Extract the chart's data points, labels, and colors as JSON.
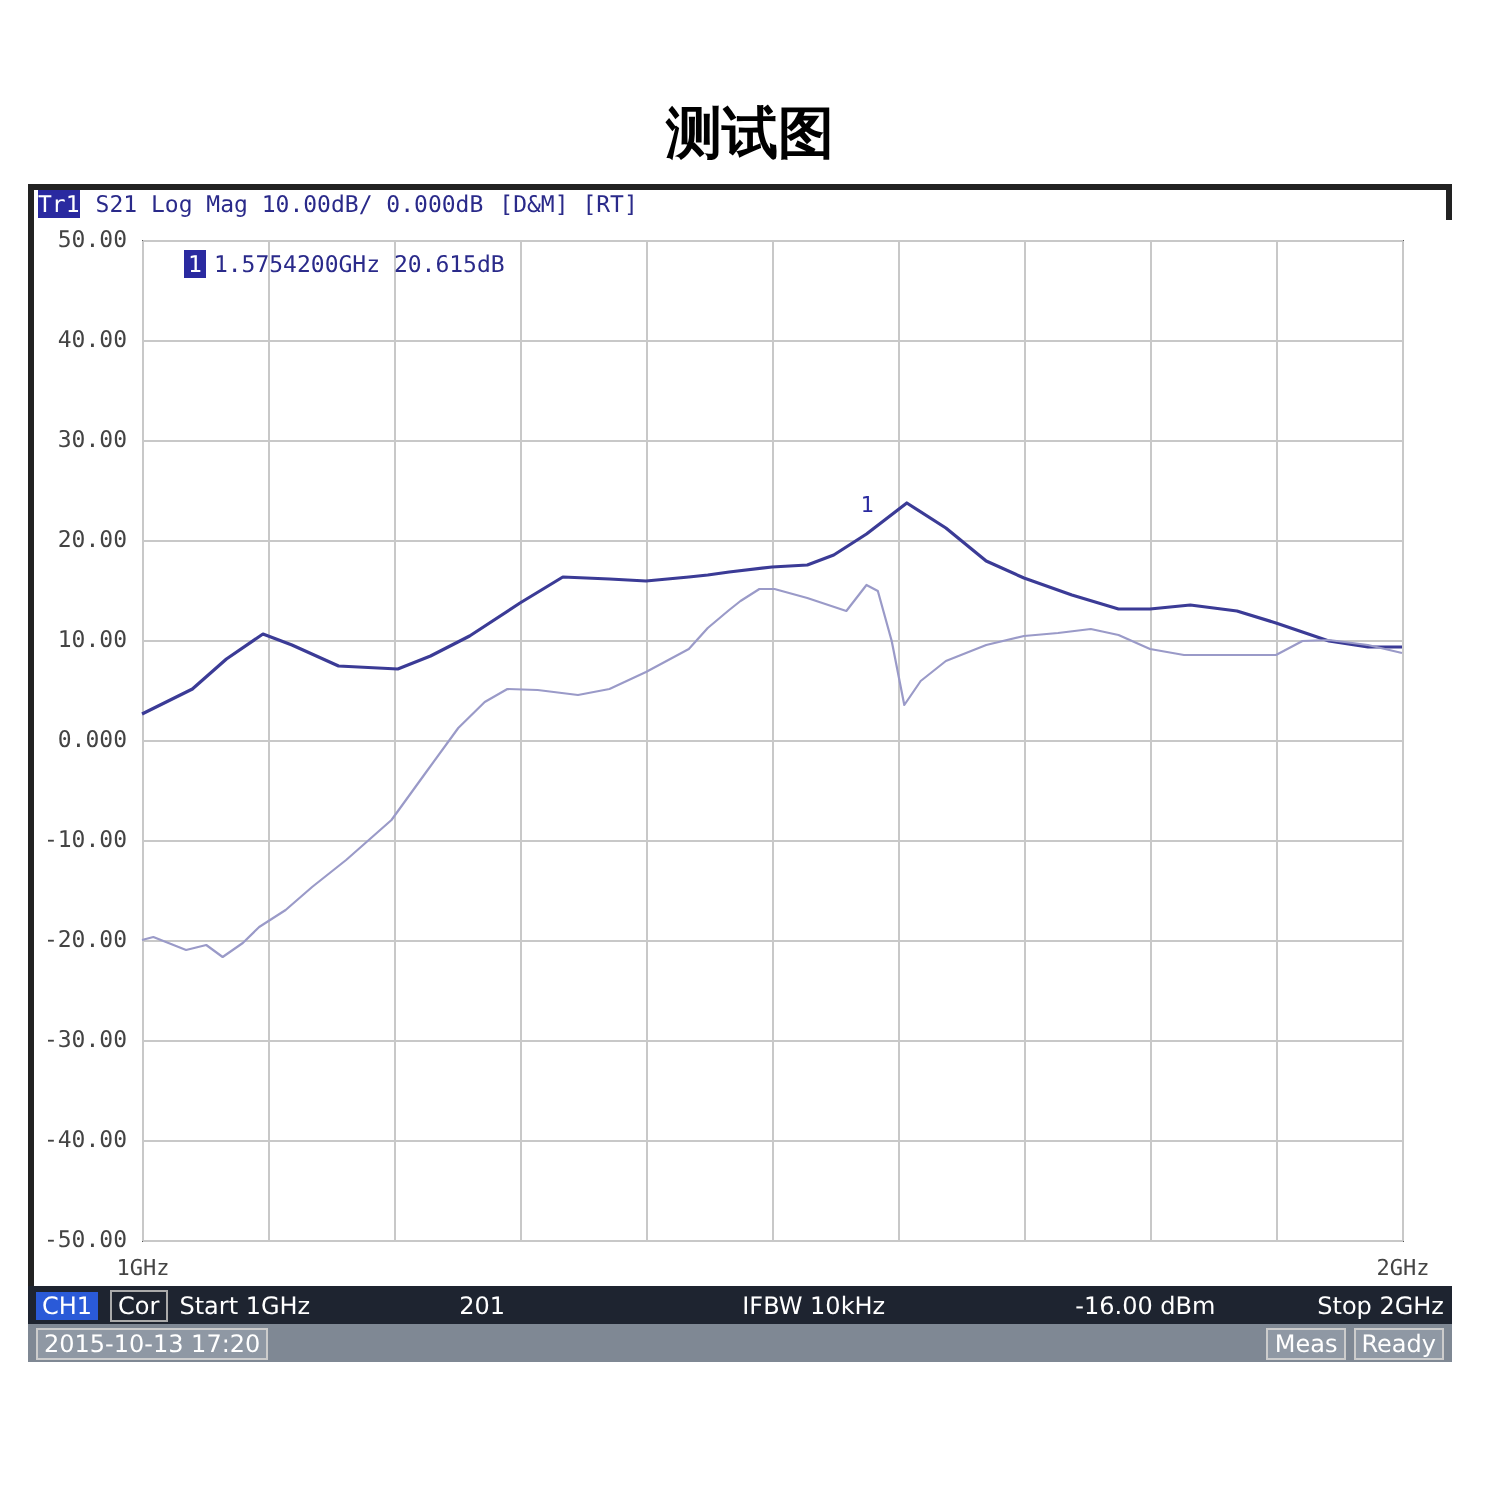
{
  "chart_data": {
    "type": "line",
    "title": "测试图",
    "x": [
      1.0,
      1.04,
      1.067,
      1.096,
      1.119,
      1.156,
      1.203,
      1.229,
      1.26,
      1.3,
      1.334,
      1.371,
      1.4,
      1.434,
      1.449,
      1.466,
      1.5,
      1.528,
      1.549,
      1.575,
      1.607,
      1.638,
      1.67,
      1.7,
      1.738,
      1.775,
      1.8,
      1.832,
      1.869,
      1.9,
      1.942,
      1.973,
      2.0
    ],
    "series": [
      {
        "color": "#3b3b96",
        "values": [
          2.6,
          5.1,
          8.1,
          10.6,
          9.5,
          7.4,
          7.1,
          8.4,
          10.4,
          13.7,
          16.3,
          16.1,
          15.9,
          16.3,
          16.5,
          16.8,
          17.3,
          17.5,
          18.5,
          20.6,
          23.7,
          21.2,
          17.9,
          16.2,
          14.5,
          13.1,
          13.1,
          13.5,
          12.9,
          11.7,
          9.9,
          9.3,
          9.3
        ]
      },
      {
        "color": "#9a9ac8",
        "x": [
          1.0,
          1.009,
          1.035,
          1.051,
          1.064,
          1.08,
          1.093,
          1.114,
          1.135,
          1.162,
          1.198,
          1.225,
          1.251,
          1.272,
          1.29,
          1.314,
          1.346,
          1.371,
          1.4,
          1.434,
          1.449,
          1.466,
          1.475,
          1.49,
          1.502,
          1.528,
          1.559,
          1.575,
          1.584,
          1.595,
          1.605,
          1.618,
          1.638,
          1.67,
          1.7,
          1.727,
          1.753,
          1.775,
          1.8,
          1.827,
          1.9,
          1.921,
          1.942,
          1.973,
          2.0
        ],
        "values": [
          -20,
          -19.7,
          -21,
          -20.5,
          -21.7,
          -20.3,
          -18.7,
          -17,
          -14.7,
          -12,
          -8,
          -3.3,
          1.2,
          3.8,
          5.1,
          5.0,
          4.5,
          5.1,
          6.8,
          9.1,
          11.2,
          13,
          13.9,
          15.1,
          15.1,
          14.2,
          12.9,
          15.5,
          14.9,
          9.9,
          3.5,
          5.9,
          7.9,
          9.5,
          10.4,
          10.7,
          11.1,
          10.5,
          9.1,
          8.5,
          8.5,
          9.9,
          10,
          9.5,
          8.7
        ]
      }
    ],
    "xlim": [
      1,
      2
    ],
    "xticks": [
      {
        "value": 1,
        "label": "1GHz"
      },
      {
        "value": 1.1,
        "label": null
      },
      {
        "value": 1.2,
        "label": null
      },
      {
        "value": 1.3,
        "label": null
      },
      {
        "value": 1.4,
        "label": null
      },
      {
        "value": 1.5,
        "label": null
      },
      {
        "value": 1.6,
        "label": null
      },
      {
        "value": 1.7,
        "label": null
      },
      {
        "value": 1.8,
        "label": null
      },
      {
        "value": 1.9,
        "label": null
      },
      {
        "value": 2,
        "label": "2GHz"
      }
    ],
    "ylim": [
      -50,
      50
    ],
    "yticks": [
      {
        "value": -50,
        "label": "-50.00"
      },
      {
        "value": -40,
        "label": "-40.00"
      },
      {
        "value": -30,
        "label": "-30.00"
      },
      {
        "value": -20,
        "label": "-20.00"
      },
      {
        "value": -10,
        "label": "-10.00"
      },
      {
        "value": 0,
        "label": "0.000"
      },
      {
        "value": 10,
        "label": "10.00"
      },
      {
        "value": 20,
        "label": "20.00"
      },
      {
        "value": 30,
        "label": "30.00"
      },
      {
        "value": 40,
        "label": "40.00"
      },
      {
        "value": 50,
        "label": "50.00"
      }
    ],
    "grid": true,
    "line_style": "solid",
    "annotations": [
      "Tr1",
      "S21 Log Mag 10.00dB/ 0.000dB",
      "[D&M] [RT]",
      "1",
      "1.5754200GHz 20.615dB",
      {
        "text": "1",
        "x": 1.57542,
        "y": 20.615
      },
      "CH1",
      "Cor",
      "Start 1GHz",
      "201",
      "IFBW 10kHz",
      "-16.00 dBm",
      "Stop 2GHz",
      "2015-10-13 17:20",
      "Meas",
      "Ready"
    ]
  }
}
